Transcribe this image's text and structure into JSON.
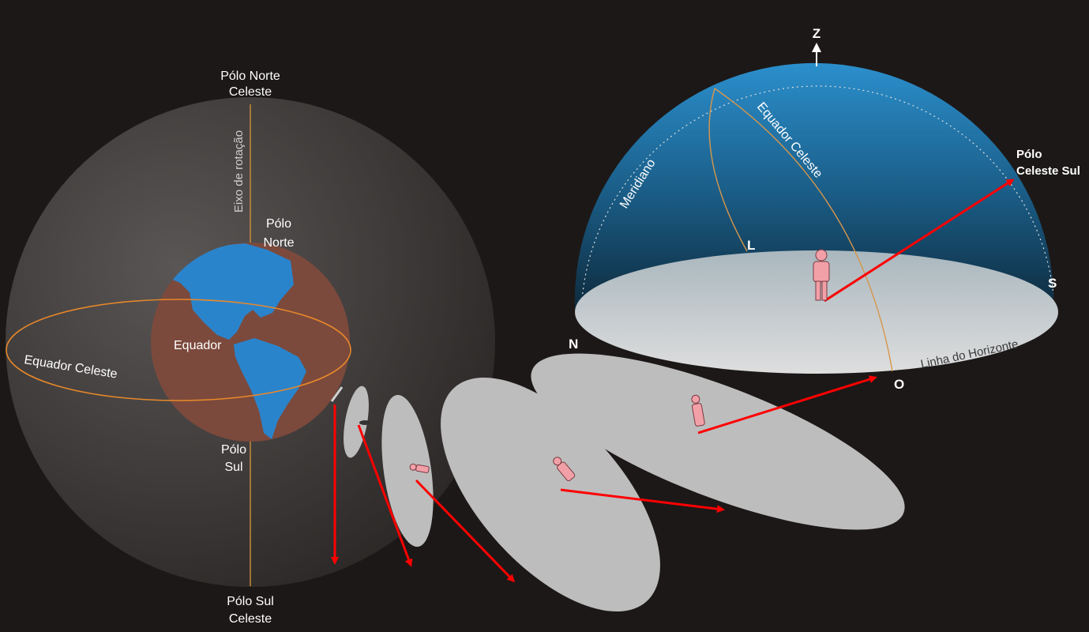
{
  "celestial_sphere": {
    "north_celestial_pole": [
      "Pólo Norte",
      "Celeste"
    ],
    "south_celestial_pole": [
      "Pólo Sul",
      "Celeste"
    ],
    "rotation_axis": "Eixo de rotação",
    "celestial_equator": "Equador Celeste"
  },
  "earth": {
    "north_pole": [
      "Pólo",
      "Norte"
    ],
    "south_pole": [
      "Pólo",
      "Sul"
    ],
    "equator": "Equador"
  },
  "horizon_view": {
    "zenith": "Z",
    "meridian": "Meridiano",
    "celestial_equator": "Equador Celeste",
    "south_celestial_pole": [
      "Pólo",
      "Celeste Sul"
    ],
    "horizon_line": "Linha do Horizonte",
    "cardinals": {
      "north": "N",
      "south": "S",
      "east": "L",
      "west": "O"
    }
  },
  "colors": {
    "background": "#1c1817",
    "earth_land": "#2a84cc",
    "earth_ocean": "#7b4a3c",
    "orbit": "#e8882a",
    "arrow": "#ff0000",
    "disc": "#bdbdbd",
    "sky_top": "#2b8fcc",
    "sky_bottom": "#0e2a3c",
    "person": "#f2a0a8"
  }
}
